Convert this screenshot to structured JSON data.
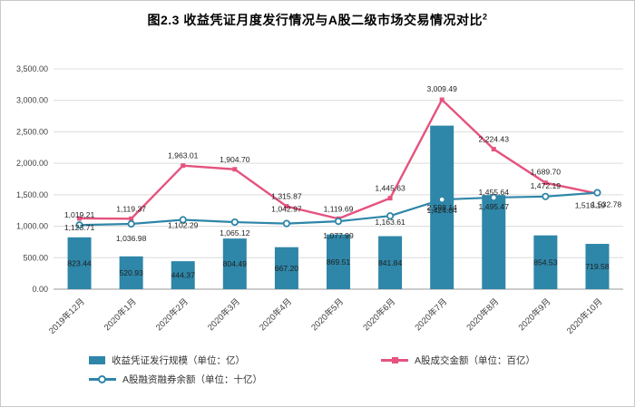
{
  "figure": {
    "title": "图2.3 收益凭证月度发行情况与A股二级市场交易情况对比",
    "footnote_marker": "2"
  },
  "chart_data": {
    "type": "combo",
    "categories": [
      "2019年12月",
      "2020年1月",
      "2020年2月",
      "2020年3月",
      "2020年4月",
      "2020年5月",
      "2020年6月",
      "2020年7月",
      "2020年8月",
      "2020年9月",
      "2020年10月"
    ],
    "series": [
      {
        "name": "收益凭证发行规模（单位：亿）",
        "type": "bar",
        "color": "#2E86A8",
        "values": [
          823.44,
          520.93,
          444.37,
          804.49,
          667.2,
          869.51,
          841.84,
          2598.14,
          1495.47,
          854.53,
          719.58
        ]
      },
      {
        "name": "A股成交金额（单位：百亿）",
        "type": "line",
        "marker": "square",
        "color": "#E5537E",
        "values": [
          1123.71,
          1119.37,
          1963.01,
          1904.7,
          1315.87,
          1119.69,
          1445.63,
          3009.49,
          2224.43,
          1689.7,
          1518.19
        ]
      },
      {
        "name": "A股融资融券余额（单位：十亿）",
        "type": "line",
        "marker": "circle",
        "color": "#2E86A8",
        "values": [
          1019.21,
          1036.98,
          1102.29,
          1065.12,
          1042.97,
          1077.99,
          1163.61,
          1424.04,
          1455.64,
          1472.19,
          1532.78
        ]
      }
    ],
    "ylim": [
      0,
      3500
    ],
    "y_tick_step": 500,
    "y_tick_labels": [
      "0.00",
      "500.00",
      "1,000.00",
      "1,500.00",
      "2,000.00",
      "2,500.00",
      "3,000.00",
      "3,500.00"
    ],
    "grid": true,
    "legend_position": "bottom",
    "label_color": "#1f1f1f",
    "axis_text_color": "#404040",
    "gridline_color": "#dcdcdc",
    "axis_line_color": "#9a9a9a"
  }
}
